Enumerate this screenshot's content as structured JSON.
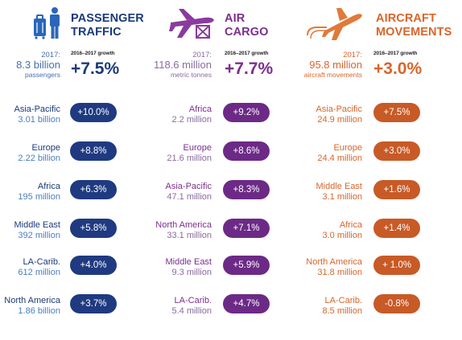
{
  "passenger": {
    "title_line1": "PASSENGER",
    "title_line2": "TRAFFIC",
    "base_year": "2017:",
    "base_value": "8.3 billion",
    "base_unit": "passengers",
    "growth_label": "2016–2017 growth",
    "growth_value": "+7.5%",
    "regions": [
      {
        "name": "Asia-Pacific",
        "value": "3.01 billion",
        "growth": "+10.0%"
      },
      {
        "name": "Europe",
        "value": "2.22 billion",
        "growth": "+8.8%"
      },
      {
        "name": "Africa",
        "value": "195 million",
        "growth": "+6.3%"
      },
      {
        "name": "Middle East",
        "value": "392 million",
        "growth": "+5.8%"
      },
      {
        "name": "LA-Carib.",
        "value": "612 million",
        "growth": "+4.0%"
      },
      {
        "name": "North America",
        "value": "1.86 billion",
        "growth": "+3.7%"
      }
    ]
  },
  "cargo": {
    "title_line1": "AIR",
    "title_line2": "CARGO",
    "base_year": "2017:",
    "base_value": "118.6 million",
    "base_unit": "metric tonnes",
    "growth_label": "2016–2017 growth",
    "growth_value": "+7.7%",
    "regions": [
      {
        "name": "Africa",
        "value": "2.2 million",
        "growth": "+9.2%"
      },
      {
        "name": "Europe",
        "value": "21.6 million",
        "growth": "+8.6%"
      },
      {
        "name": "Asia-Pacific",
        "value": "47.1 million",
        "growth": "+8.3%"
      },
      {
        "name": "North America",
        "value": "33.1 million",
        "growth": "+7.1%"
      },
      {
        "name": "Middle East",
        "value": "9.3 million",
        "growth": "+5.9%"
      },
      {
        "name": "LA-Carib.",
        "value": "5.4 million",
        "growth": "+4.7%"
      }
    ]
  },
  "movements": {
    "title_line1": "AIRCRAFT",
    "title_line2": "MOVEMENTS",
    "base_year": "2017:",
    "base_value": "95.8 million",
    "base_unit": "aircraft movements",
    "growth_label": "2016–2017 growth",
    "growth_value": "+3.0%",
    "regions": [
      {
        "name": "Asia-Pacific",
        "value": "24.9 million",
        "growth": "+7.5%"
      },
      {
        "name": "Europe",
        "value": "24.4 million",
        "growth": "+3.0%"
      },
      {
        "name": "Middle East",
        "value": "3.1 million",
        "growth": "+1.6%"
      },
      {
        "name": "Africa",
        "value": "3.0 million",
        "growth": "+1.4%"
      },
      {
        "name": "North America",
        "value": "31.8 million",
        "growth": "+ 1.0%"
      },
      {
        "name": "LA-Carib.",
        "value": "8.5 million",
        "growth": "-0.8%"
      }
    ]
  },
  "icons": {
    "passenger": "luggage-and-traveler-icon",
    "cargo": "cargo-plane-with-box-icon",
    "movements": "departing-plane-with-trail-icon"
  },
  "colors": {
    "passenger": "#1f3a80",
    "cargo": "#6c2a86",
    "movements": "#c85a26"
  }
}
